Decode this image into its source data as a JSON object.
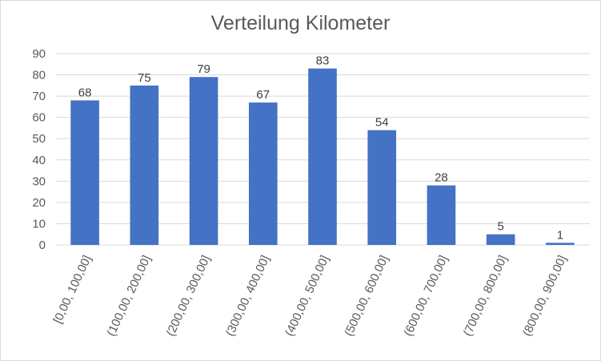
{
  "chart_data": {
    "type": "bar",
    "title": "Verteilung Kilometer",
    "xlabel": "",
    "ylabel": "",
    "categories": [
      "[0,00, 100,00]",
      "(100,00, 200,00]",
      "(200,00, 300,00]",
      "(300,00, 400,00]",
      "(400,00, 500,00]",
      "(500,00, 600,00]",
      "(600,00, 700,00]",
      "(700,00, 800,00]",
      "(800,00, 900,00]"
    ],
    "values": [
      68,
      75,
      79,
      67,
      83,
      54,
      28,
      5,
      1
    ],
    "ylim": [
      0,
      90
    ],
    "yticks": [
      "0",
      "10",
      "20",
      "30",
      "40",
      "50",
      "60",
      "70",
      "80",
      "90"
    ],
    "grid": true,
    "legend": "none",
    "bar_color": "#4472c4",
    "grid_color": "#d9d9d9"
  }
}
